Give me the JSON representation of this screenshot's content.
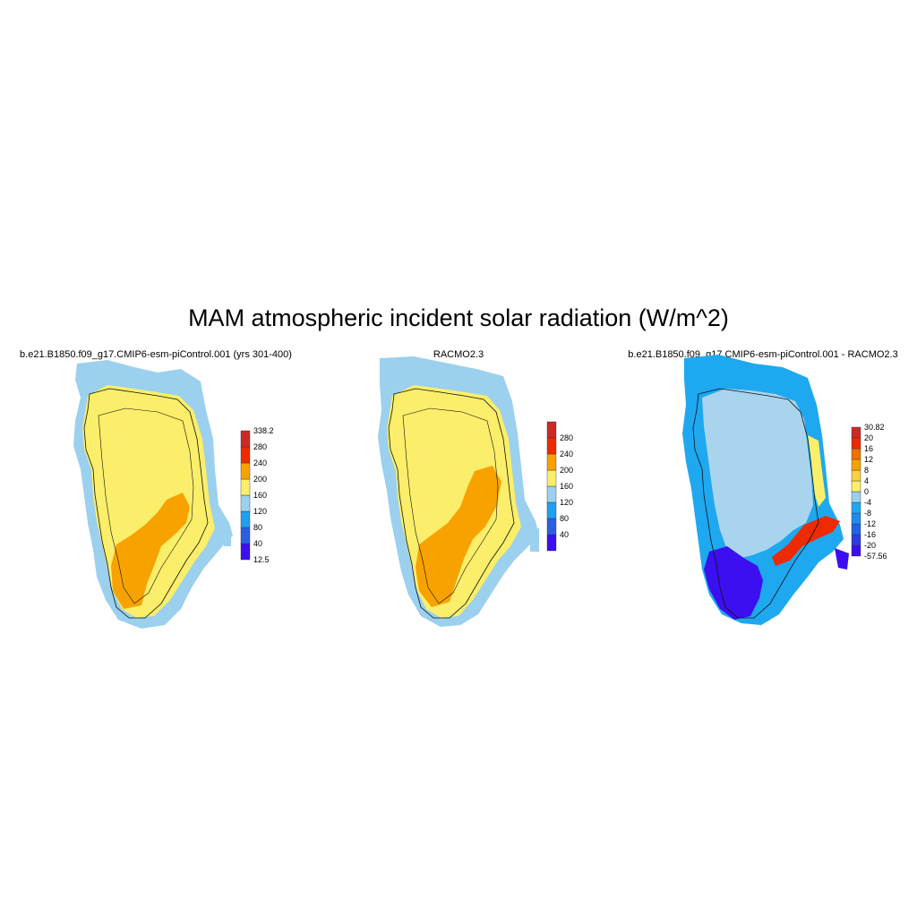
{
  "title": "MAM atmospheric incident solar radiation (W/m^2)",
  "panels": [
    {
      "id": "model",
      "title": "b.e21.B1850.f09_g17.CMIP6-esm-piControl.001 (yrs 301-400)",
      "colors": [
        "#3b0ff0",
        "#2c5ee3",
        "#1f9ff0",
        "#9bd0ee",
        "#fbee6a",
        "#f8a200",
        "#ee2a00",
        "#cb2a25"
      ],
      "labels": [
        "338.2",
        "280",
        "240",
        "200",
        "160",
        "120",
        "80",
        "40",
        "12.5"
      ],
      "fields": {
        "coast": "#9bd0ee",
        "interior": "#fbee6a",
        "south": "#f8a200"
      }
    },
    {
      "id": "racmo",
      "title": "RACMO2.3",
      "colors": [
        "#3b0ff0",
        "#2c5ee3",
        "#1f9ff0",
        "#9bd0ee",
        "#fbee6a",
        "#f8a200",
        "#ee2a00",
        "#cb2a25"
      ],
      "labels": [
        "280",
        "240",
        "200",
        "160",
        "120",
        "80",
        "40"
      ],
      "fields": {
        "coast": "#9bd0ee",
        "interior": "#fbee6a",
        "south": "#f8a200"
      }
    },
    {
      "id": "diff",
      "title": "b.e21.B1850.f09_g17.CMIP6-esm-piControl.001 - RACMO2.3",
      "colors": [
        "#3b0ff0",
        "#2b3ce0",
        "#2163e6",
        "#1f8bf0",
        "#1ea8f0",
        "#9bd0ee",
        "#fbee6a",
        "#f8d040",
        "#f8a200",
        "#f07000",
        "#ee2a00",
        "#cb2a25"
      ],
      "labels": [
        "30.82",
        "20",
        "16",
        "12",
        "8",
        "4",
        "0",
        "-4",
        "-8",
        "-12",
        "-16",
        "-20",
        "-57.56"
      ],
      "fields": {
        "edge": "#1ea8f0",
        "interior": "#a9d4ee",
        "south": "#3b0ff0",
        "warm": "#ee2a00"
      }
    }
  ]
}
